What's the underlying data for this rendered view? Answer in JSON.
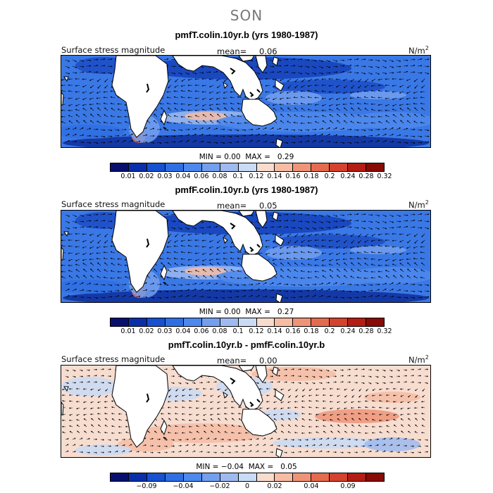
{
  "season": "SON",
  "panels": [
    {
      "title": "pmfT.colin.10yr.b (yrs 1980-1987)",
      "field": "Surface stress magnitude",
      "mean_label": "mean=",
      "mean_value": "0.06",
      "units": "N/m",
      "units_exp": "2",
      "min_label": "MIN =",
      "min_value": "0.00",
      "max_label": "MAX =",
      "max_value": "0.29",
      "colorbar_colors": [
        "#08106e",
        "#0a2fa8",
        "#1750d0",
        "#2f6fe2",
        "#4d88ec",
        "#739fee",
        "#9ebaf0",
        "#c9dbf5",
        "#f8ddce",
        "#f6bca4",
        "#ef9478",
        "#e56b4f",
        "#d3432d",
        "#b31d14",
        "#870b06"
      ],
      "ticks": [
        "0.01",
        "0.02",
        "0.03",
        "0.04",
        "0.06",
        "0.08",
        "0.1",
        "0.12",
        "0.14",
        "0.16",
        "0.18",
        "0.2",
        "0.24",
        "0.28",
        "0.32"
      ]
    },
    {
      "title": "pmfF.colin.10yr.b (yrs 1980-1987)",
      "field": "Surface stress magnitude",
      "mean_label": "mean=",
      "mean_value": "0.05",
      "units": "N/m",
      "units_exp": "2",
      "min_label": "MIN =",
      "min_value": "0.00",
      "max_label": "MAX =",
      "max_value": "0.27",
      "colorbar_colors": [
        "#08106e",
        "#0a2fa8",
        "#1750d0",
        "#2f6fe2",
        "#4d88ec",
        "#739fee",
        "#9ebaf0",
        "#c9dbf5",
        "#f8ddce",
        "#f6bca4",
        "#ef9478",
        "#e56b4f",
        "#d3432d",
        "#b31d14",
        "#870b06"
      ],
      "ticks": [
        "0.01",
        "0.02",
        "0.03",
        "0.04",
        "0.06",
        "0.08",
        "0.1",
        "0.12",
        "0.14",
        "0.16",
        "0.18",
        "0.2",
        "0.24",
        "0.28",
        "0.32"
      ]
    },
    {
      "title": "pmfT.colin.10yr.b - pmfF.colin.10yr.b",
      "field": "Surface stress magnitude",
      "mean_label": "mean=",
      "mean_value": "0.00",
      "units": "N/m",
      "units_exp": "2",
      "min_label": "MIN =",
      "min_value": "−0.04",
      "max_label": "MAX =",
      "max_value": "0.05",
      "colorbar_colors": [
        "#08106e",
        "#0a2fa8",
        "#1750d0",
        "#2f6fe2",
        "#4d88ec",
        "#739fee",
        "#9ebaf0",
        "#c9dbf5",
        "#f8ddce",
        "#f6bca4",
        "#ef9478",
        "#e56b4f",
        "#d3432d",
        "#b31d14",
        "#870b06"
      ],
      "ticks": [
        "−0.09",
        "−0.04",
        "−0.02",
        "0",
        "0.02",
        "0.04",
        "0.09"
      ]
    }
  ]
}
